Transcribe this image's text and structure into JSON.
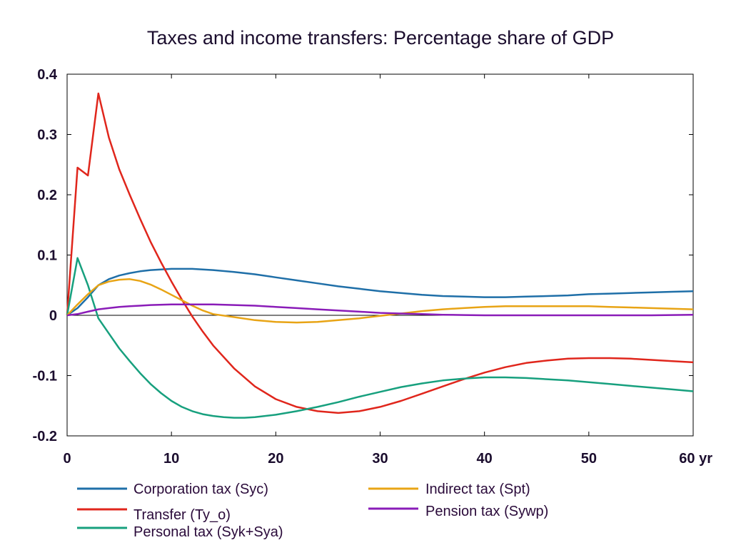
{
  "chart_data": {
    "type": "line",
    "title": "Taxes and income transfers: Percentage share of GDP",
    "xlabel": "yr",
    "ylabel": "",
    "xlim": [
      0,
      60
    ],
    "ylim": [
      -0.2,
      0.4
    ],
    "x_ticks": [
      {
        "value": 0,
        "label": "0"
      },
      {
        "value": 10,
        "label": "10"
      },
      {
        "value": 20,
        "label": "20"
      },
      {
        "value": 30,
        "label": "30"
      },
      {
        "value": 40,
        "label": "40"
      },
      {
        "value": 50,
        "label": "50"
      },
      {
        "value": 60,
        "label": "60 yr"
      }
    ],
    "y_ticks": [
      {
        "value": 0.4,
        "label": "0.4"
      },
      {
        "value": 0.3,
        "label": "0.3"
      },
      {
        "value": 0.2,
        "label": "0.2"
      },
      {
        "value": 0.1,
        "label": "0.1"
      },
      {
        "value": 0,
        "label": "0"
      },
      {
        "value": -0.1,
        "label": "-0.1"
      },
      {
        "value": -0.2,
        "label": "-0.2"
      }
    ],
    "grid": false,
    "zero_line": true,
    "legend_position": "bottom",
    "series": [
      {
        "name": "Corporation tax (Syc)",
        "color": "#1f6fa8",
        "points": [
          [
            0,
            0
          ],
          [
            1,
            0.012
          ],
          [
            2,
            0.03
          ],
          [
            3,
            0.05
          ],
          [
            4,
            0.06
          ],
          [
            5,
            0.066
          ],
          [
            6,
            0.07
          ],
          [
            7,
            0.073
          ],
          [
            8,
            0.075
          ],
          [
            9,
            0.076
          ],
          [
            10,
            0.077
          ],
          [
            11,
            0.077
          ],
          [
            12,
            0.077
          ],
          [
            14,
            0.075
          ],
          [
            16,
            0.072
          ],
          [
            18,
            0.068
          ],
          [
            20,
            0.063
          ],
          [
            22,
            0.058
          ],
          [
            24,
            0.053
          ],
          [
            26,
            0.048
          ],
          [
            28,
            0.044
          ],
          [
            30,
            0.04
          ],
          [
            32,
            0.037
          ],
          [
            34,
            0.034
          ],
          [
            36,
            0.032
          ],
          [
            38,
            0.031
          ],
          [
            40,
            0.03
          ],
          [
            42,
            0.03
          ],
          [
            44,
            0.031
          ],
          [
            46,
            0.032
          ],
          [
            48,
            0.033
          ],
          [
            50,
            0.035
          ],
          [
            52,
            0.036
          ],
          [
            54,
            0.037
          ],
          [
            56,
            0.038
          ],
          [
            58,
            0.039
          ],
          [
            60,
            0.04
          ]
        ]
      },
      {
        "name": "Transfer (Ty_o)",
        "color": "#e0261c",
        "points": [
          [
            0,
            0
          ],
          [
            1,
            0.245
          ],
          [
            2,
            0.232
          ],
          [
            3,
            0.368
          ],
          [
            4,
            0.295
          ],
          [
            5,
            0.242
          ],
          [
            6,
            0.2
          ],
          [
            7,
            0.16
          ],
          [
            8,
            0.122
          ],
          [
            9,
            0.088
          ],
          [
            10,
            0.056
          ],
          [
            11,
            0.026
          ],
          [
            12,
            -0.002
          ],
          [
            13,
            -0.027
          ],
          [
            14,
            -0.05
          ],
          [
            16,
            -0.088
          ],
          [
            18,
            -0.118
          ],
          [
            20,
            -0.139
          ],
          [
            22,
            -0.152
          ],
          [
            24,
            -0.159
          ],
          [
            26,
            -0.162
          ],
          [
            28,
            -0.159
          ],
          [
            30,
            -0.152
          ],
          [
            32,
            -0.142
          ],
          [
            34,
            -0.13
          ],
          [
            36,
            -0.118
          ],
          [
            38,
            -0.106
          ],
          [
            40,
            -0.095
          ],
          [
            42,
            -0.086
          ],
          [
            44,
            -0.079
          ],
          [
            46,
            -0.075
          ],
          [
            48,
            -0.072
          ],
          [
            50,
            -0.071
          ],
          [
            52,
            -0.071
          ],
          [
            54,
            -0.072
          ],
          [
            56,
            -0.074
          ],
          [
            58,
            -0.076
          ],
          [
            60,
            -0.078
          ]
        ]
      },
      {
        "name": "Personal tax (Syk+Sya)",
        "color": "#17a07e",
        "points": [
          [
            0,
            0
          ],
          [
            1,
            0.095
          ],
          [
            2,
            0.05
          ],
          [
            3,
            -0.005
          ],
          [
            4,
            -0.03
          ],
          [
            5,
            -0.055
          ],
          [
            6,
            -0.076
          ],
          [
            7,
            -0.096
          ],
          [
            8,
            -0.114
          ],
          [
            9,
            -0.129
          ],
          [
            10,
            -0.142
          ],
          [
            11,
            -0.152
          ],
          [
            12,
            -0.159
          ],
          [
            13,
            -0.164
          ],
          [
            14,
            -0.167
          ],
          [
            15,
            -0.169
          ],
          [
            16,
            -0.17
          ],
          [
            17,
            -0.17
          ],
          [
            18,
            -0.169
          ],
          [
            20,
            -0.165
          ],
          [
            22,
            -0.159
          ],
          [
            24,
            -0.152
          ],
          [
            26,
            -0.144
          ],
          [
            28,
            -0.135
          ],
          [
            30,
            -0.127
          ],
          [
            32,
            -0.119
          ],
          [
            34,
            -0.113
          ],
          [
            36,
            -0.108
          ],
          [
            38,
            -0.105
          ],
          [
            40,
            -0.103
          ],
          [
            42,
            -0.103
          ],
          [
            44,
            -0.104
          ],
          [
            46,
            -0.106
          ],
          [
            48,
            -0.108
          ],
          [
            50,
            -0.111
          ],
          [
            52,
            -0.114
          ],
          [
            54,
            -0.117
          ],
          [
            56,
            -0.12
          ],
          [
            58,
            -0.123
          ],
          [
            60,
            -0.126
          ]
        ]
      },
      {
        "name": "Indirect tax (Spt)",
        "color": "#e8a415",
        "points": [
          [
            0,
            0
          ],
          [
            1,
            0.018
          ],
          [
            2,
            0.035
          ],
          [
            3,
            0.05
          ],
          [
            4,
            0.056
          ],
          [
            5,
            0.059
          ],
          [
            6,
            0.06
          ],
          [
            7,
            0.057
          ],
          [
            8,
            0.051
          ],
          [
            9,
            0.043
          ],
          [
            10,
            0.034
          ],
          [
            11,
            0.025
          ],
          [
            12,
            0.016
          ],
          [
            13,
            0.008
          ],
          [
            14,
            0.002
          ],
          [
            16,
            -0.003
          ],
          [
            18,
            -0.008
          ],
          [
            20,
            -0.011
          ],
          [
            22,
            -0.012
          ],
          [
            24,
            -0.011
          ],
          [
            26,
            -0.008
          ],
          [
            28,
            -0.005
          ],
          [
            30,
            -0.001
          ],
          [
            32,
            0.003
          ],
          [
            34,
            0.007
          ],
          [
            36,
            0.01
          ],
          [
            38,
            0.012
          ],
          [
            40,
            0.014
          ],
          [
            42,
            0.015
          ],
          [
            44,
            0.015
          ],
          [
            46,
            0.015
          ],
          [
            48,
            0.015
          ],
          [
            50,
            0.015
          ],
          [
            52,
            0.014
          ],
          [
            54,
            0.013
          ],
          [
            56,
            0.012
          ],
          [
            58,
            0.011
          ],
          [
            60,
            0.01
          ]
        ]
      },
      {
        "name": "Pension tax (Sywp)",
        "color": "#8a1cb8",
        "points": [
          [
            0,
            0
          ],
          [
            1,
            0.002
          ],
          [
            2,
            0.006
          ],
          [
            3,
            0.01
          ],
          [
            4,
            0.012
          ],
          [
            5,
            0.014
          ],
          [
            6,
            0.015
          ],
          [
            7,
            0.016
          ],
          [
            8,
            0.017
          ],
          [
            10,
            0.018
          ],
          [
            12,
            0.018
          ],
          [
            14,
            0.018
          ],
          [
            16,
            0.017
          ],
          [
            18,
            0.016
          ],
          [
            20,
            0.014
          ],
          [
            22,
            0.012
          ],
          [
            24,
            0.01
          ],
          [
            26,
            0.008
          ],
          [
            28,
            0.006
          ],
          [
            30,
            0.004
          ],
          [
            32,
            0.003
          ],
          [
            34,
            0.002
          ],
          [
            36,
            0.001
          ],
          [
            38,
            0.0005
          ],
          [
            40,
            0
          ],
          [
            42,
            0
          ],
          [
            44,
            0
          ],
          [
            46,
            0
          ],
          [
            48,
            0
          ],
          [
            50,
            0
          ],
          [
            52,
            0
          ],
          [
            54,
            0
          ],
          [
            56,
            0
          ],
          [
            58,
            0.0005
          ],
          [
            60,
            0.001
          ]
        ]
      }
    ]
  }
}
